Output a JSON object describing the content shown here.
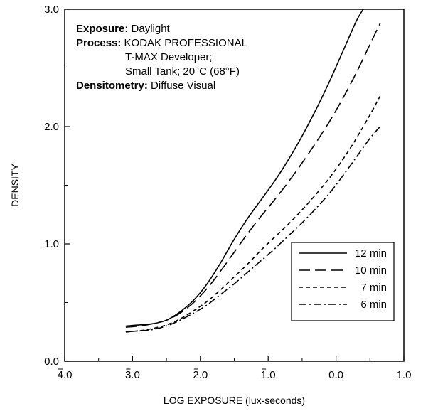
{
  "chart_data": {
    "type": "line",
    "xlabel": "LOG EXPOSURE (lux-seconds)",
    "ylabel": "DENSITY",
    "xlim": [
      -4.0,
      1.0
    ],
    "ylim": [
      0.0,
      3.0
    ],
    "x_ticks": [
      {
        "value": -4.0,
        "label": "4.0"
      },
      {
        "value": -3.0,
        "label": "3.0"
      },
      {
        "value": -2.0,
        "label": "2.0"
      },
      {
        "value": -1.0,
        "label": "1.0"
      },
      {
        "value": 0.0,
        "label": "0.0"
      },
      {
        "value": 1.0,
        "label": "1.0"
      }
    ],
    "y_ticks": [
      {
        "value": 0.0,
        "label": "0.0"
      },
      {
        "value": 1.0,
        "label": "1.0"
      },
      {
        "value": 2.0,
        "label": "2.0"
      },
      {
        "value": 3.0,
        "label": "3.0"
      }
    ],
    "annotations": [
      {
        "bold": "Exposure:",
        "text": " Daylight"
      },
      {
        "bold": "Process:",
        "text": " KODAK PROFESSIONAL"
      },
      {
        "bold": "",
        "text": "T-MAX Developer;"
      },
      {
        "bold": "",
        "text": "Small Tank; 20°C (68°F)"
      },
      {
        "bold": "Densitometry:",
        "text": " Diffuse Visual"
      }
    ],
    "legend_position": "bottom-right",
    "series": [
      {
        "name": "12 min",
        "dash": "solid",
        "x": [
          -3.1,
          -2.9,
          -2.7,
          -2.5,
          -2.3,
          -2.1,
          -1.9,
          -1.7,
          -1.5,
          -1.3,
          -1.1,
          -0.9,
          -0.7,
          -0.5,
          -0.3,
          -0.1,
          0.1,
          0.3,
          0.4
        ],
        "y": [
          0.3,
          0.31,
          0.32,
          0.35,
          0.42,
          0.52,
          0.66,
          0.84,
          1.04,
          1.22,
          1.38,
          1.54,
          1.72,
          1.92,
          2.14,
          2.38,
          2.64,
          2.9,
          3.0
        ]
      },
      {
        "name": "10 min",
        "dash": "long-dash",
        "x": [
          -3.1,
          -2.9,
          -2.7,
          -2.5,
          -2.3,
          -2.1,
          -1.9,
          -1.7,
          -1.5,
          -1.3,
          -1.1,
          -0.9,
          -0.7,
          -0.5,
          -0.3,
          -0.1,
          0.1,
          0.3,
          0.5,
          0.65
        ],
        "y": [
          0.29,
          0.3,
          0.32,
          0.35,
          0.41,
          0.5,
          0.62,
          0.77,
          0.93,
          1.09,
          1.24,
          1.38,
          1.53,
          1.69,
          1.86,
          2.04,
          2.24,
          2.46,
          2.7,
          2.88
        ]
      },
      {
        "name": "7 min",
        "dash": "short-dash",
        "x": [
          -3.1,
          -2.9,
          -2.7,
          -2.5,
          -2.3,
          -2.1,
          -1.9,
          -1.7,
          -1.5,
          -1.3,
          -1.1,
          -0.9,
          -0.7,
          -0.5,
          -0.3,
          -0.1,
          0.1,
          0.3,
          0.5,
          0.65
        ],
        "y": [
          0.25,
          0.26,
          0.28,
          0.31,
          0.36,
          0.43,
          0.51,
          0.61,
          0.72,
          0.83,
          0.95,
          1.06,
          1.17,
          1.29,
          1.42,
          1.56,
          1.72,
          1.9,
          2.1,
          2.26
        ]
      },
      {
        "name": "6 min",
        "dash": "dash-dot",
        "x": [
          -3.1,
          -2.9,
          -2.7,
          -2.5,
          -2.3,
          -2.1,
          -1.9,
          -1.7,
          -1.5,
          -1.3,
          -1.1,
          -0.9,
          -0.7,
          -0.5,
          -0.3,
          -0.1,
          0.1,
          0.3,
          0.5,
          0.65
        ],
        "y": [
          0.25,
          0.26,
          0.27,
          0.3,
          0.35,
          0.41,
          0.48,
          0.57,
          0.66,
          0.76,
          0.86,
          0.96,
          1.07,
          1.18,
          1.3,
          1.43,
          1.58,
          1.74,
          1.9,
          2.0
        ]
      }
    ]
  }
}
